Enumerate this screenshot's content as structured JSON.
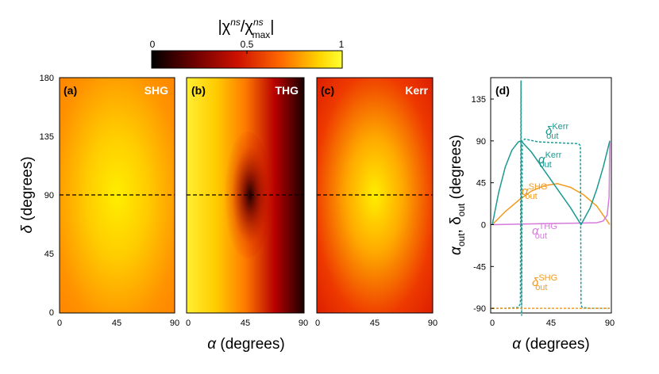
{
  "colorbar": {
    "title_main": "|χ",
    "title_sup_num": "ns",
    "title_slash": "/χ",
    "title_sup_den": "ns",
    "title_sub_den": "max",
    "title_close": "|",
    "ticks": [
      "0",
      "0.5",
      "1"
    ],
    "colors": [
      "#000000",
      "#6b0000",
      "#cc1000",
      "#ff6a00",
      "#ffd400",
      "#ffff33"
    ]
  },
  "axes": {
    "xlabel": "α (degrees)",
    "xlabel_greek": "α",
    "xlabel_unit": " (degrees)",
    "ylabel_left_greek": "δ",
    "ylabel_left_unit": " (degrees)",
    "ylabel_right_a": "α",
    "ylabel_right_a_sub": "out",
    "ylabel_right_sep": ", δ",
    "ylabel_right_d_sub": "out",
    "ylabel_right_unit": " (degrees)"
  },
  "chart_data": [
    {
      "type": "heatmap",
      "panel": "(a)",
      "name": "SHG",
      "x_ticks": [
        "0",
        "45",
        "90"
      ],
      "y_ticks": [
        "0",
        "45",
        "90",
        "135",
        "180"
      ],
      "xlim": [
        0,
        90
      ],
      "ylim": [
        0,
        180
      ],
      "dashed_line_y": 90,
      "color_range": [
        0,
        1
      ]
    },
    {
      "type": "heatmap",
      "panel": "(b)",
      "name": "THG",
      "x_ticks": [
        "0",
        "45",
        "90"
      ],
      "xlim": [
        0,
        90
      ],
      "ylim": [
        0,
        180
      ],
      "dashed_line_y": 90,
      "color_range": [
        0,
        1
      ]
    },
    {
      "type": "heatmap",
      "panel": "(c)",
      "name": "Kerr",
      "x_ticks": [
        "0",
        "45",
        "90"
      ],
      "xlim": [
        0,
        90
      ],
      "ylim": [
        0,
        180
      ],
      "dashed_line_y": 90,
      "color_range": [
        0,
        1
      ]
    },
    {
      "type": "line",
      "panel": "(d)",
      "x_ticks": [
        "0",
        "45",
        "90"
      ],
      "y_ticks": [
        "-90",
        "-45",
        "0",
        "45",
        "90",
        "135"
      ],
      "xlim": [
        0,
        90
      ],
      "ylim": [
        -95,
        158
      ],
      "series": [
        {
          "name": "α_out^SHG",
          "label_main": "α",
          "label_sub": "out",
          "label_sup": "SHG",
          "color": "#f39a1e",
          "style": "solid",
          "x": [
            0,
            10,
            20,
            30,
            40,
            50,
            60,
            70,
            80,
            90
          ],
          "y": [
            0,
            14,
            26,
            36,
            42,
            44,
            40,
            32,
            20,
            0
          ]
        },
        {
          "name": "α_out^THG",
          "label_main": "α",
          "label_sub": "out",
          "label_sup": "THG",
          "color": "#d47adb",
          "style": "solid",
          "x": [
            0,
            20,
            40,
            60,
            80,
            85,
            88,
            89.5,
            90
          ],
          "y": [
            0,
            0.5,
            1,
            1.5,
            2,
            4,
            10,
            30,
            90
          ]
        },
        {
          "name": "α_out^Kerr",
          "label_main": "α",
          "label_sub": "out",
          "label_sup": "Kerr",
          "color": "#1a9991",
          "style": "solid",
          "x": [
            0,
            5,
            10,
            15,
            20,
            22,
            30,
            40,
            50,
            60,
            68,
            75,
            80,
            85,
            90
          ],
          "y": [
            0,
            35,
            62,
            80,
            89,
            90,
            78,
            58,
            38,
            18,
            0,
            18,
            38,
            62,
            90
          ]
        },
        {
          "name": "δ_out^Kerr",
          "label_main": "δ",
          "label_sub": "out",
          "label_sup": "Kerr",
          "color": "#1a9991",
          "style": "dashed",
          "x": [
            0,
            10,
            20,
            21.5,
            22,
            22.5,
            23,
            25,
            35,
            50,
            66,
            67.5,
            68,
            68.5,
            69,
            75,
            90
          ],
          "y": [
            -90,
            -90,
            -89,
            -85,
            155,
            -98,
            90,
            92,
            89,
            88,
            87,
            85,
            -85,
            -88,
            -89,
            -90,
            -90
          ]
        },
        {
          "name": "δ_out^SHG",
          "label_main": "δ",
          "label_sub": "out",
          "label_sup": "SHG",
          "color": "#f39a1e",
          "style": "dashed",
          "x": [
            0,
            90
          ],
          "y": [
            -90,
            -90
          ]
        }
      ]
    }
  ]
}
